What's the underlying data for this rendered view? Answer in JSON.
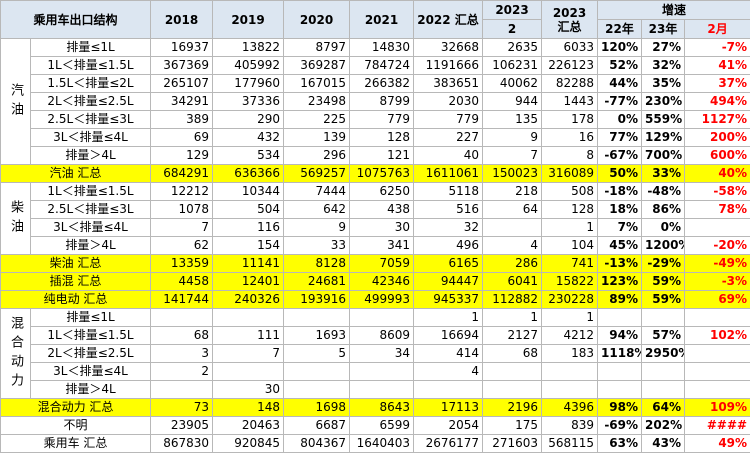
{
  "header": {
    "corner": "乘用车出口结构",
    "years": [
      "2018",
      "2019",
      "2020",
      "2021",
      "2022 汇总"
    ],
    "y2023_top": "2023",
    "y2023_bottom": "2",
    "y2023_total": "2023 汇总",
    "growth": "增速",
    "growth_cols": [
      "22年",
      "23年",
      "2月"
    ]
  },
  "sections": [
    {
      "group": "汽油",
      "rows": [
        {
          "label": "排量≤1L",
          "cells": [
            "16937",
            "13822",
            "8797",
            "14830",
            "32668",
            "2635",
            "6033",
            "120%",
            "27%",
            "-7%"
          ]
        },
        {
          "label": "1L＜排量≤1.5L",
          "cells": [
            "367369",
            "405992",
            "369287",
            "784724",
            "1191666",
            "106231",
            "226123",
            "52%",
            "32%",
            "41%"
          ]
        },
        {
          "label": "1.5L＜排量≤2L",
          "cells": [
            "265107",
            "177960",
            "167015",
            "266382",
            "383651",
            "40062",
            "82288",
            "44%",
            "35%",
            "37%"
          ]
        },
        {
          "label": "2L＜排量≤2.5L",
          "cells": [
            "34291",
            "37336",
            "23498",
            "8799",
            "2030",
            "944",
            "1443",
            "-77%",
            "230%",
            "494%"
          ]
        },
        {
          "label": "2.5L＜排量≤3L",
          "cells": [
            "389",
            "290",
            "225",
            "779",
            "779",
            "135",
            "178",
            "0%",
            "559%",
            "1127%"
          ]
        },
        {
          "label": "3L＜排量≤4L",
          "cells": [
            "69",
            "432",
            "139",
            "128",
            "227",
            "9",
            "16",
            "77%",
            "129%",
            "200%"
          ]
        },
        {
          "label": "排量＞4L",
          "cells": [
            "129",
            "534",
            "296",
            "121",
            "40",
            "7",
            "8",
            "-67%",
            "700%",
            "600%"
          ]
        }
      ]
    },
    {
      "label": "汽油 汇总",
      "highlight": true,
      "cells": [
        "684291",
        "636366",
        "569257",
        "1075763",
        "1611061",
        "150023",
        "316089",
        "50%",
        "33%",
        "40%"
      ]
    },
    {
      "group": "柴油",
      "rows": [
        {
          "label": "1L＜排量≤1.5L",
          "cells": [
            "12212",
            "10344",
            "7444",
            "6250",
            "5118",
            "218",
            "508",
            "-18%",
            "-48%",
            "-58%"
          ]
        },
        {
          "label": "2.5L＜排量≤3L",
          "cells": [
            "1078",
            "504",
            "642",
            "438",
            "516",
            "64",
            "128",
            "18%",
            "86%",
            "78%"
          ]
        },
        {
          "label": "3L＜排量≤4L",
          "cells": [
            "7",
            "116",
            "9",
            "30",
            "32",
            null,
            "1",
            "7%",
            "0%",
            null
          ]
        },
        {
          "label": "排量＞4L",
          "cells": [
            "62",
            "154",
            "33",
            "341",
            "496",
            "4",
            "104",
            "45%",
            "1200%",
            "-20%"
          ]
        }
      ]
    },
    {
      "label": "柴油 汇总",
      "highlight": true,
      "cells": [
        "13359",
        "11141",
        "8128",
        "7059",
        "6165",
        "286",
        "741",
        "-13%",
        "-29%",
        "-49%"
      ]
    },
    {
      "label": "插混 汇总",
      "highlight": true,
      "cells": [
        "4458",
        "12401",
        "24681",
        "42346",
        "94447",
        "6041",
        "15822",
        "123%",
        "59%",
        "-3%"
      ]
    },
    {
      "label": "纯电动 汇总",
      "highlight": true,
      "cells": [
        "141744",
        "240326",
        "193916",
        "499993",
        "945337",
        "112882",
        "230228",
        "89%",
        "59%",
        "69%"
      ]
    },
    {
      "group": "混合动力",
      "rows": [
        {
          "label": "排量≤1L",
          "cells": [
            null,
            null,
            null,
            null,
            "1",
            "1",
            "1",
            null,
            null,
            null
          ]
        },
        {
          "label": "1L＜排量≤1.5L",
          "cells": [
            "68",
            "111",
            "1693",
            "8609",
            "16694",
            "2127",
            "4212",
            "94%",
            "57%",
            "102%"
          ]
        },
        {
          "label": "2L＜排量≤2.5L",
          "cells": [
            "3",
            "7",
            "5",
            "34",
            "414",
            "68",
            "183",
            "1118%",
            "2950%",
            null
          ]
        },
        {
          "label": "3L＜排量≤4L",
          "cells": [
            "2",
            null,
            null,
            null,
            "4",
            null,
            null,
            null,
            null,
            null
          ]
        },
        {
          "label": "排量＞4L",
          "cells": [
            null,
            "30",
            null,
            null,
            null,
            null,
            null,
            null,
            null,
            null
          ]
        }
      ]
    },
    {
      "label": "混合动力 汇总",
      "highlight": true,
      "cells": [
        "73",
        "148",
        "1698",
        "8643",
        "17113",
        "2196",
        "4396",
        "98%",
        "64%",
        "109%"
      ]
    },
    {
      "label": "不明",
      "cells": [
        "23905",
        "20463",
        "6687",
        "6599",
        "2054",
        "175",
        "839",
        "-69%",
        "202%",
        "####"
      ]
    },
    {
      "label": "乘用车 汇总",
      "cells": [
        "867830",
        "920845",
        "804367",
        "1640403",
        "2676177",
        "271603",
        "568115",
        "63%",
        "43%",
        "49%"
      ]
    }
  ]
}
